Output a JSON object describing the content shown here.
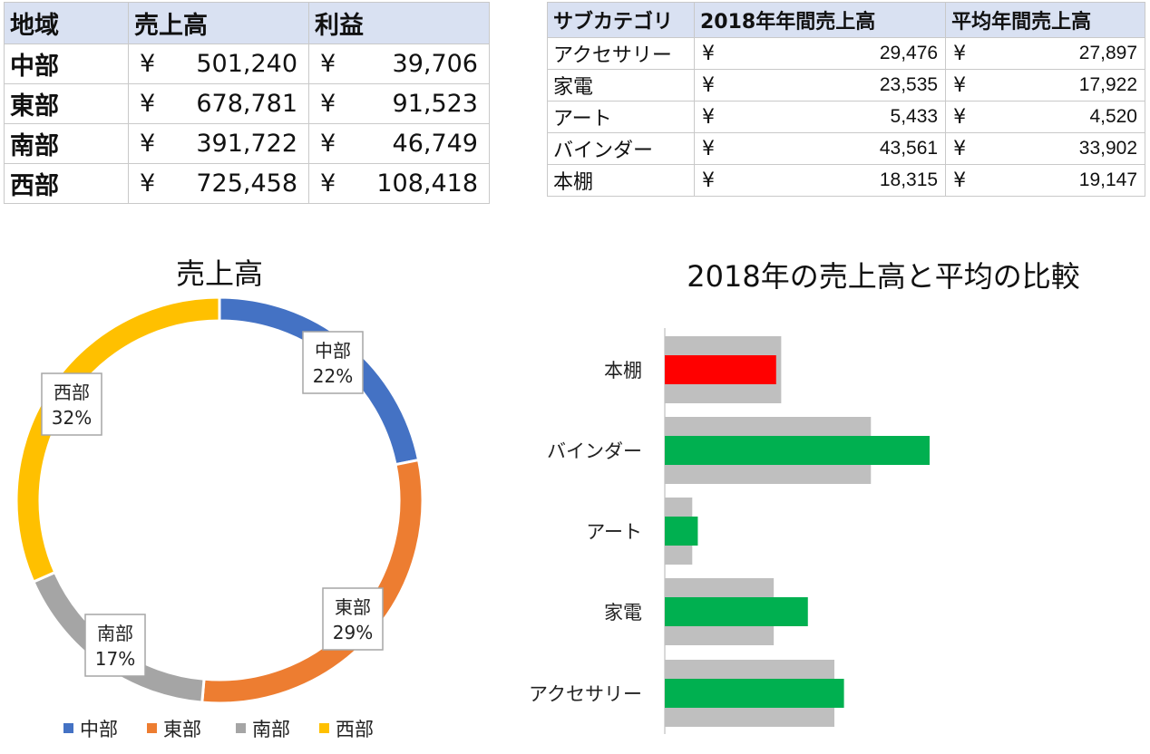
{
  "region_table": {
    "headers": [
      "地域",
      "売上高",
      "利益"
    ],
    "currency": "¥",
    "rows": [
      {
        "region": "中部",
        "sales": "501,240",
        "profit": "39,706"
      },
      {
        "region": "東部",
        "sales": "678,781",
        "profit": "91,523"
      },
      {
        "region": "南部",
        "sales": "391,722",
        "profit": "46,749"
      },
      {
        "region": "西部",
        "sales": "725,458",
        "profit": "108,418"
      }
    ]
  },
  "subcategory_table": {
    "headers": [
      "サブカテゴリ",
      "2018年年間売上高",
      "平均年間売上高"
    ],
    "currency": "¥",
    "rows": [
      {
        "name": "アクセサリー",
        "sales_2018": "29,476",
        "avg": "27,897"
      },
      {
        "name": "家電",
        "sales_2018": "23,535",
        "avg": "17,922"
      },
      {
        "name": "アート",
        "sales_2018": "5,433",
        "avg": "4,520"
      },
      {
        "name": "バインダー",
        "sales_2018": "43,561",
        "avg": "33,902"
      },
      {
        "name": "本棚",
        "sales_2018": "18,315",
        "avg": "19,147"
      }
    ]
  },
  "chart_data": [
    {
      "type": "pie",
      "donut": true,
      "title": "売上高",
      "categories": [
        "中部",
        "東部",
        "南部",
        "西部"
      ],
      "values": [
        501240,
        678781,
        391722,
        725458
      ],
      "percent_labels": [
        "22%",
        "29%",
        "17%",
        "32%"
      ],
      "colors": [
        "#4472c4",
        "#ed7d31",
        "#a5a5a5",
        "#ffc000"
      ],
      "legend": "bottom"
    },
    {
      "type": "bar",
      "orientation": "horizontal",
      "overlap": true,
      "title": "2018年の売上高と平均の比較",
      "categories": [
        "本棚",
        "バインダー",
        "アート",
        "家電",
        "アクセサリー"
      ],
      "series": [
        {
          "values": [
            19147,
            33902,
            4520,
            17922,
            27897
          ],
          "color": "#bfbfbf"
        },
        {
          "values": [
            18315,
            43561,
            5433,
            23535,
            29476
          ],
          "colors": [
            "#ff0000",
            "#00b050",
            "#00b050",
            "#00b050",
            "#00b050"
          ]
        }
      ],
      "xlim": [
        0,
        45000
      ],
      "legend": "none"
    }
  ]
}
